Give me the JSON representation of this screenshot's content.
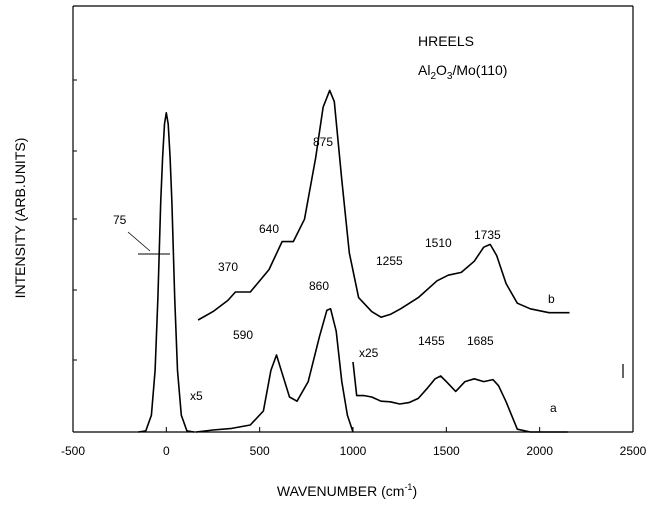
{
  "chart_data": {
    "type": "line",
    "title_line1": "HREELS",
    "title_line2_main": "Al",
    "title_line2_sub1": "2",
    "title_line2_mid": "O",
    "title_line2_sub2": "3",
    "title_line2_tail": "/Mo(110)",
    "xlabel_main": "WAVENUMBER (cm",
    "xlabel_sup": "-1",
    "xlabel_tail": ")",
    "ylabel": "INTENSITY (ARB.UNITS)",
    "xlim": [
      -500,
      2500
    ],
    "xticks": [
      "-500",
      "0",
      "500",
      "1000",
      "1500",
      "2000",
      "2500"
    ],
    "elastic_peak": {
      "fwhm_label": "75",
      "x": [
        -150,
        -110,
        -80,
        -60,
        -45,
        -30,
        -20,
        -10,
        0,
        10,
        20,
        30,
        45,
        60,
        80,
        110,
        150
      ],
      "y": [
        0,
        0.4,
        6,
        22,
        48,
        82,
        98,
        110,
        114,
        110,
        98,
        82,
        48,
        22,
        6,
        0.4,
        0
      ]
    },
    "series": [
      {
        "name": "a",
        "segments": [
          {
            "scale_label": "x5",
            "x": [
              160,
              250,
              350,
              450,
              520,
              560,
              590,
              620,
              660,
              700,
              760,
              820,
              860,
              880,
              910,
              940,
              970,
              1000
            ],
            "y": [
              0,
              0.7,
              1.3,
              2.5,
              7.5,
              22,
              27.5,
              21,
              12.5,
              11,
              18,
              34,
              43.5,
              44,
              36,
              18,
              6,
              0
            ]
          },
          {
            "scale_label": "x25",
            "x": [
              1000,
              1020,
              1060,
              1100,
              1150,
              1200,
              1250,
              1300,
              1350,
              1400,
              1440,
              1470,
              1500,
              1550,
              1600,
              1650,
              1700,
              1750,
              1780,
              1820,
              1880,
              1950,
              2050,
              2150
            ],
            "y": [
              25,
              13,
              13,
              12.5,
              11,
              10.8,
              10,
              10.5,
              12,
              15.8,
              19,
              20,
              18,
              14.5,
              18,
              19,
              18,
              18.7,
              16.5,
              10.8,
              1,
              0,
              0,
              0
            ]
          }
        ],
        "peak_labels": [
          "590",
          "860",
          "1455",
          "1685"
        ]
      },
      {
        "name": "b",
        "x": [
          170,
          250,
          330,
          370,
          450,
          550,
          620,
          680,
          740,
          800,
          840,
          875,
          900,
          940,
          980,
          1030,
          1100,
          1150,
          1200,
          1255,
          1350,
          1450,
          1510,
          1580,
          1650,
          1700,
          1735,
          1770,
          1820,
          1880,
          1950,
          2050,
          2160
        ],
        "y": [
          40,
          43,
          47,
          50,
          50,
          58,
          68,
          68,
          76,
          98,
          116,
          122,
          118,
          90,
          64,
          48,
          43,
          41,
          42,
          44,
          48,
          54,
          56,
          57,
          61,
          66,
          67,
          63,
          53,
          46,
          44,
          42.6,
          42.6
        ],
        "peak_labels": [
          "370",
          "640",
          "875",
          "1255",
          "1510",
          "1735"
        ]
      }
    ]
  }
}
